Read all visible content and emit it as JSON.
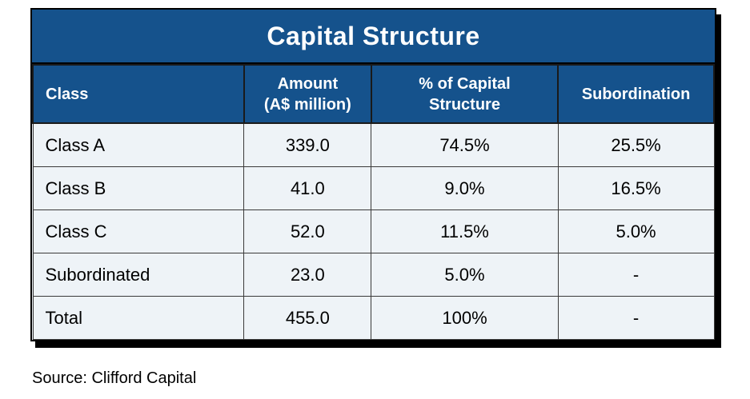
{
  "colors": {
    "header_blue": "#15528c",
    "row_background": "#eef3f7",
    "border_black": "#000000",
    "grid_line": "#3a3a3a",
    "title_text": "#ffffff",
    "body_text": "#000000"
  },
  "table": {
    "title": "Capital Structure",
    "columns": [
      {
        "lines": [
          "Class"
        ]
      },
      {
        "lines": [
          "Amount",
          "(A$ million)"
        ]
      },
      {
        "lines": [
          "% of Capital",
          "Structure"
        ]
      },
      {
        "lines": [
          "Subordination"
        ]
      }
    ],
    "rows": [
      [
        "Class A",
        "339.0",
        "74.5%",
        "25.5%"
      ],
      [
        "Class B",
        "41.0",
        "9.0%",
        "16.5%"
      ],
      [
        "Class C",
        "52.0",
        "11.5%",
        "5.0%"
      ],
      [
        "Subordinated",
        "23.0",
        "5.0%",
        "-"
      ],
      [
        "Total",
        "455.0",
        "100%",
        "-"
      ]
    ]
  },
  "source": {
    "text": "Source: Clifford Capital"
  },
  "chart_data": {
    "type": "table",
    "title": "Capital Structure",
    "columns": [
      "Class",
      "Amount (A$ million)",
      "% of Capital Structure",
      "Subordination"
    ],
    "rows": [
      [
        "Class A",
        339.0,
        "74.5%",
        "25.5%"
      ],
      [
        "Class B",
        41.0,
        "9.0%",
        "16.5%"
      ],
      [
        "Class C",
        52.0,
        "11.5%",
        "5.0%"
      ],
      [
        "Subordinated",
        23.0,
        "5.0%",
        null
      ],
      [
        "Total",
        455.0,
        "100%",
        null
      ]
    ],
    "units": "A$ million",
    "source": "Source: Clifford Capital"
  }
}
